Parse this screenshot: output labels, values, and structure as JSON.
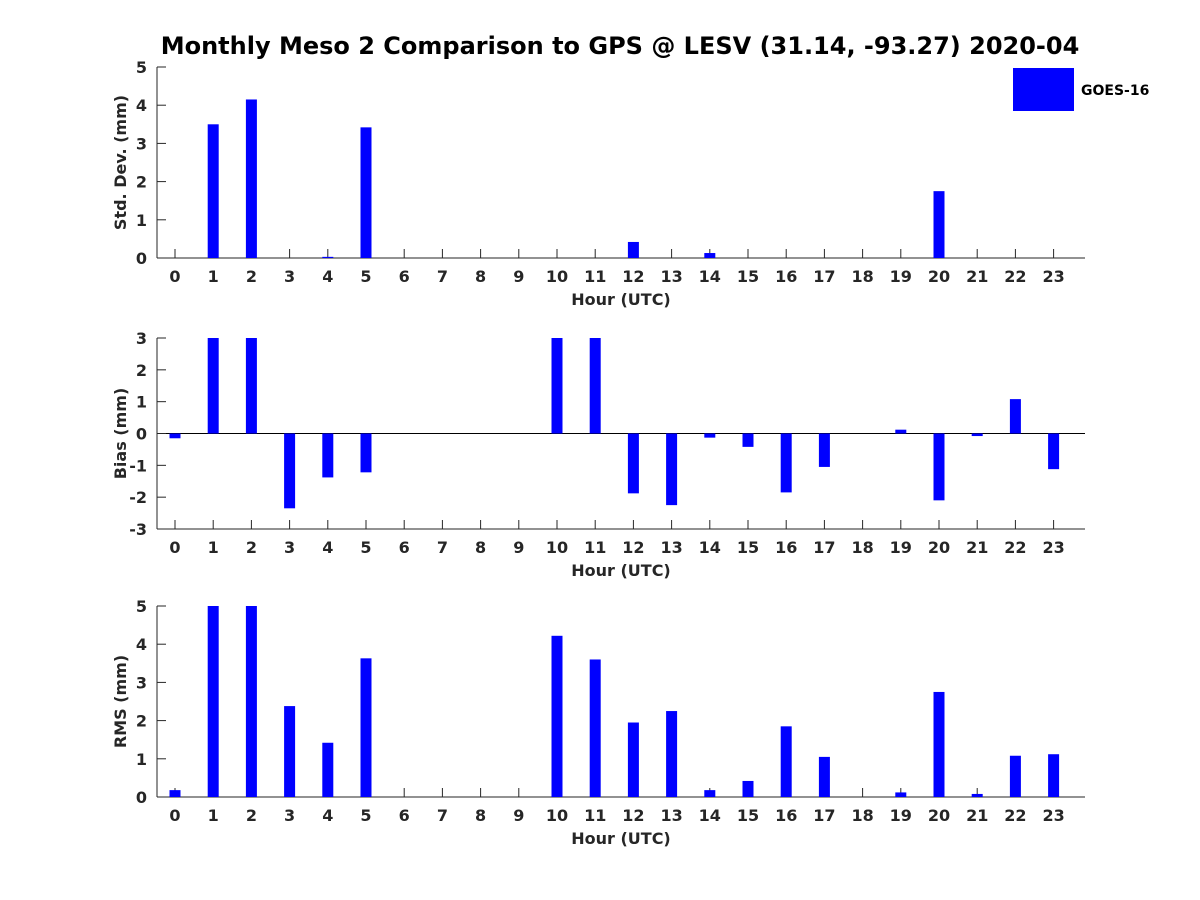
{
  "chart_data": [
    {
      "type": "bar",
      "title": "Monthly Meso 2 Comparison to GPS @ LESV (31.14, -93.27) 2020-04",
      "xlabel": "Hour (UTC)",
      "ylabel": "Std. Dev. (mm)",
      "ylim": [
        0,
        5
      ],
      "yticks": [
        0,
        1,
        2,
        3,
        4,
        5
      ],
      "categories": [
        "0",
        "1",
        "2",
        "3",
        "4",
        "5",
        "6",
        "7",
        "8",
        "9",
        "10",
        "11",
        "12",
        "13",
        "14",
        "15",
        "16",
        "17",
        "18",
        "19",
        "20",
        "21",
        "22",
        "23"
      ],
      "series": [
        {
          "name": "GOES-16",
          "color": "#0000ff",
          "values": [
            0,
            3.5,
            4.15,
            0,
            0.03,
            3.42,
            0,
            0,
            0,
            0,
            0,
            0,
            0.42,
            0,
            0.13,
            0,
            0,
            0,
            0,
            0,
            1.75,
            0,
            0,
            0
          ]
        }
      ],
      "legend": "top-right",
      "grid": false
    },
    {
      "type": "bar",
      "xlabel": "Hour (UTC)",
      "ylabel": "Bias (mm)",
      "ylim": [
        -3,
        3
      ],
      "yticks": [
        -3,
        -2,
        -1,
        0,
        1,
        2,
        3
      ],
      "categories": [
        "0",
        "1",
        "2",
        "3",
        "4",
        "5",
        "6",
        "7",
        "8",
        "9",
        "10",
        "11",
        "12",
        "13",
        "14",
        "15",
        "16",
        "17",
        "18",
        "19",
        "20",
        "21",
        "22",
        "23"
      ],
      "series": [
        {
          "name": "GOES-16",
          "color": "#0000ff",
          "values": [
            -0.15,
            3.0,
            3.0,
            -2.35,
            -1.38,
            -1.22,
            0,
            0,
            0,
            0,
            3.0,
            3.0,
            -1.88,
            -2.25,
            -0.13,
            -0.42,
            -1.85,
            -1.05,
            0,
            0.12,
            -2.1,
            -0.08,
            1.08,
            -1.12
          ]
        }
      ],
      "grid": false
    },
    {
      "type": "bar",
      "xlabel": "Hour (UTC)",
      "ylabel": "RMS (mm)",
      "ylim": [
        0,
        5
      ],
      "yticks": [
        0,
        1,
        2,
        3,
        4,
        5
      ],
      "categories": [
        "0",
        "1",
        "2",
        "3",
        "4",
        "5",
        "6",
        "7",
        "8",
        "9",
        "10",
        "11",
        "12",
        "13",
        "14",
        "15",
        "16",
        "17",
        "18",
        "19",
        "20",
        "21",
        "22",
        "23"
      ],
      "series": [
        {
          "name": "GOES-16",
          "color": "#0000ff",
          "values": [
            0.18,
            5.0,
            5.0,
            2.38,
            1.42,
            3.63,
            0,
            0,
            0,
            0,
            4.22,
            3.6,
            1.95,
            2.25,
            0.18,
            0.42,
            1.85,
            1.05,
            0,
            0.12,
            2.75,
            0.08,
            1.08,
            1.12
          ]
        }
      ],
      "grid": false
    }
  ]
}
